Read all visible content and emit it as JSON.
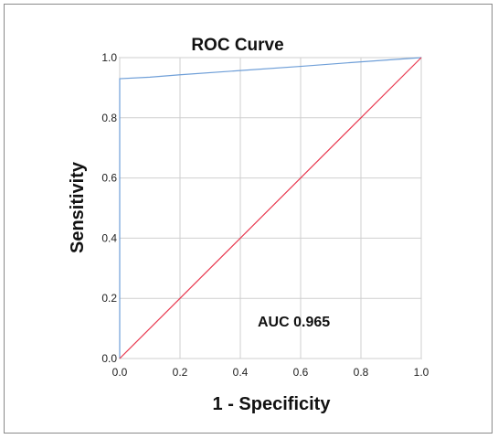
{
  "chart_data": {
    "type": "line",
    "title": "ROC Curve",
    "xlabel": "1 - Specificity",
    "ylabel": "Sensitivity",
    "xlim": [
      0.0,
      1.0
    ],
    "ylim": [
      0.0,
      1.0
    ],
    "x_ticks": [
      "0.0",
      "0.2",
      "0.4",
      "0.6",
      "0.8",
      "1.0"
    ],
    "y_ticks": [
      "0.0",
      "0.2",
      "0.4",
      "0.6",
      "0.8",
      "1.0"
    ],
    "grid": true,
    "series": [
      {
        "color": "#6f9fd8",
        "x": [
          0.0,
          0.0,
          0.0,
          0.1,
          0.2,
          0.4,
          0.6,
          0.8,
          1.0
        ],
        "y": [
          0.0,
          0.5,
          0.93,
          0.935,
          0.943,
          0.957,
          0.971,
          0.986,
          1.0
        ]
      },
      {
        "color": "#e8384f",
        "x": [
          0.0,
          1.0
        ],
        "y": [
          0.0,
          1.0
        ]
      }
    ],
    "annotation": "AUC 0.965"
  }
}
